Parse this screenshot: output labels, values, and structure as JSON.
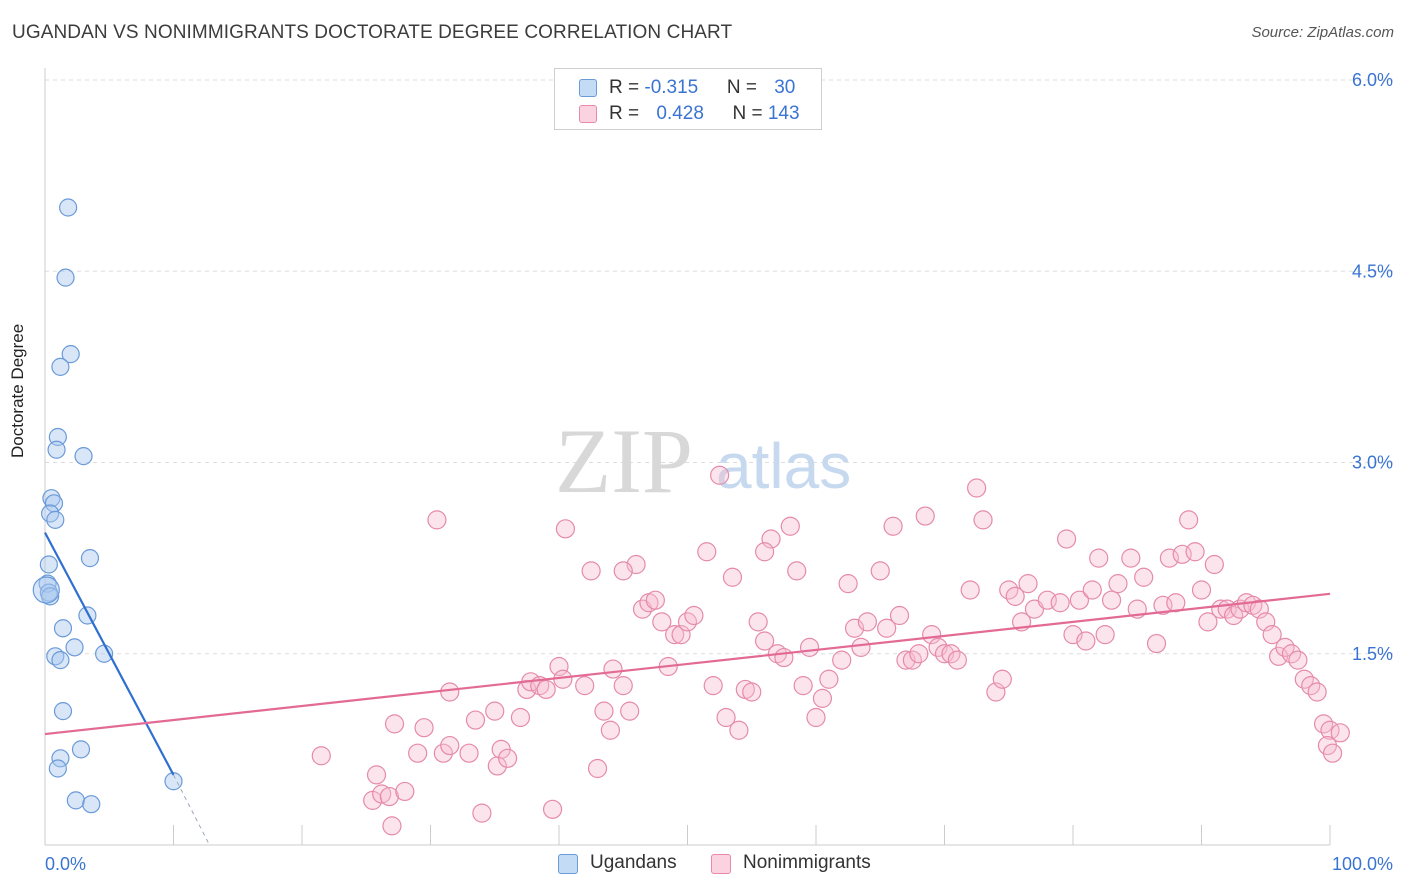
{
  "header": {
    "title": "UGANDAN VS NONIMMIGRANTS DOCTORATE DEGREE CORRELATION CHART",
    "source": "Source: ZipAtlas.com"
  },
  "watermark": {
    "zip": "ZIP",
    "atlas": "atlas"
  },
  "legend": {
    "rows": [
      {
        "r_label": "R = ",
        "r_value": "-0.315",
        "n_label": "N = ",
        "n_value": "30",
        "color": "#a8c8f0",
        "border": "#6a9ad8"
      },
      {
        "r_label": "R = ",
        "r_value": "0.428",
        "n_label": "N = ",
        "n_value": "143",
        "color": "#f8bcd0",
        "border": "#e88aa8"
      }
    ]
  },
  "bottom_legend": {
    "ugandans": "Ugandans",
    "nonimmigrants": "Nonimmigrants"
  },
  "colors": {
    "ugandan_fill": "rgba(168,200,240,0.45)",
    "ugandan_stroke": "#6a9ad8",
    "ugandan_line": "#2f6fd0",
    "nonimm_fill": "rgba(248,188,208,0.40)",
    "nonimm_stroke": "#e58aaa",
    "nonimm_line": "#e26a94",
    "axis_label": "#3a74d2",
    "grid": "#dddddd"
  },
  "chart_data": {
    "type": "scatter",
    "title": "UGANDAN VS NONIMMIGRANTS DOCTORATE DEGREE CORRELATION CHART",
    "xlabel": "",
    "ylabel": "Doctorate Degree",
    "xlim": [
      0,
      100
    ],
    "ylim": [
      0,
      6.0
    ],
    "x_tick_labels": [
      "0.0%",
      "100.0%"
    ],
    "y_ticks": [
      1.5,
      3.0,
      4.5,
      6.0
    ],
    "y_tick_labels": [
      "1.5%",
      "3.0%",
      "4.5%",
      "6.0%"
    ],
    "grid": "horizontal dashed",
    "legend_position": "top-center",
    "series": [
      {
        "name": "Ugandans",
        "points": [
          [
            1.8,
            5.0
          ],
          [
            1.6,
            4.45
          ],
          [
            2.0,
            3.85
          ],
          [
            1.2,
            3.75
          ],
          [
            1.0,
            3.2
          ],
          [
            0.9,
            3.1
          ],
          [
            3.0,
            3.05
          ],
          [
            0.5,
            2.72
          ],
          [
            0.7,
            2.68
          ],
          [
            0.4,
            2.6
          ],
          [
            0.8,
            2.55
          ],
          [
            3.5,
            2.25
          ],
          [
            0.3,
            2.2
          ],
          [
            0.2,
            2.05
          ],
          [
            0.3,
            1.98
          ],
          [
            0.4,
            1.95
          ],
          [
            3.3,
            1.8
          ],
          [
            1.4,
            1.7
          ],
          [
            2.3,
            1.55
          ],
          [
            4.6,
            1.5
          ],
          [
            0.8,
            1.48
          ],
          [
            1.2,
            1.45
          ],
          [
            1.4,
            1.05
          ],
          [
            2.8,
            0.75
          ],
          [
            1.2,
            0.68
          ],
          [
            1.0,
            0.6
          ],
          [
            2.4,
            0.35
          ],
          [
            3.6,
            0.32
          ],
          [
            10.0,
            0.5
          ],
          [
            0.1,
            2.0
          ]
        ],
        "trend": {
          "x1": 0,
          "y1": 2.45,
          "x2": 10,
          "y2": 0.55,
          "dashed_to": [
            12.8,
            0.0
          ]
        }
      },
      {
        "name": "Nonimmigrants",
        "points": [
          [
            21.5,
            0.7
          ],
          [
            25.5,
            0.35
          ],
          [
            25.8,
            0.55
          ],
          [
            26.2,
            0.4
          ],
          [
            26.8,
            0.38
          ],
          [
            27.0,
            0.15
          ],
          [
            27.2,
            0.95
          ],
          [
            28.0,
            0.42
          ],
          [
            29.0,
            0.72
          ],
          [
            29.5,
            0.92
          ],
          [
            31.0,
            0.72
          ],
          [
            31.5,
            1.2
          ],
          [
            31.5,
            0.78
          ],
          [
            33.0,
            0.72
          ],
          [
            34.0,
            0.25
          ],
          [
            35.5,
            0.75
          ],
          [
            33.5,
            0.98
          ],
          [
            35.0,
            1.05
          ],
          [
            35.2,
            0.62
          ],
          [
            36.0,
            0.68
          ],
          [
            37.0,
            1.0
          ],
          [
            37.5,
            1.22
          ],
          [
            37.8,
            1.28
          ],
          [
            38.5,
            1.25
          ],
          [
            39.5,
            0.28
          ],
          [
            39.0,
            1.22
          ],
          [
            40.0,
            1.4
          ],
          [
            40.3,
            1.3
          ],
          [
            42.0,
            1.25
          ],
          [
            42.5,
            2.15
          ],
          [
            43.0,
            0.6
          ],
          [
            43.5,
            1.05
          ],
          [
            44.0,
            0.9
          ],
          [
            44.2,
            1.38
          ],
          [
            45.0,
            1.25
          ],
          [
            45.5,
            1.05
          ],
          [
            46.0,
            2.2
          ],
          [
            46.5,
            1.85
          ],
          [
            47.0,
            1.9
          ],
          [
            47.5,
            1.92
          ],
          [
            48.0,
            1.75
          ],
          [
            48.5,
            1.4
          ],
          [
            49.0,
            1.65
          ],
          [
            49.5,
            1.65
          ],
          [
            50.0,
            1.75
          ],
          [
            50.5,
            1.8
          ],
          [
            51.5,
            2.3
          ],
          [
            52.0,
            1.25
          ],
          [
            52.5,
            2.9
          ],
          [
            53.0,
            1.0
          ],
          [
            53.5,
            2.1
          ],
          [
            54.0,
            0.9
          ],
          [
            54.5,
            1.22
          ],
          [
            55.0,
            1.2
          ],
          [
            55.5,
            1.75
          ],
          [
            56.0,
            1.6
          ],
          [
            56.5,
            2.4
          ],
          [
            57.0,
            1.5
          ],
          [
            57.5,
            1.47
          ],
          [
            58.0,
            2.5
          ],
          [
            58.5,
            2.15
          ],
          [
            59.0,
            1.25
          ],
          [
            59.5,
            1.55
          ],
          [
            60.0,
            1.0
          ],
          [
            60.5,
            1.15
          ],
          [
            61.0,
            1.3
          ],
          [
            62.0,
            1.45
          ],
          [
            62.5,
            2.05
          ],
          [
            63.0,
            1.7
          ],
          [
            63.5,
            1.55
          ],
          [
            64.0,
            1.75
          ],
          [
            65.0,
            2.15
          ],
          [
            65.5,
            1.7
          ],
          [
            66.0,
            2.5
          ],
          [
            66.5,
            1.8
          ],
          [
            67.0,
            1.45
          ],
          [
            67.5,
            1.45
          ],
          [
            68.0,
            1.5
          ],
          [
            69.0,
            1.65
          ],
          [
            69.5,
            1.55
          ],
          [
            70.0,
            1.5
          ],
          [
            70.5,
            1.5
          ],
          [
            71.0,
            1.45
          ],
          [
            72.0,
            2.0
          ],
          [
            72.5,
            2.8
          ],
          [
            73.0,
            2.55
          ],
          [
            74.0,
            1.2
          ],
          [
            74.5,
            1.3
          ],
          [
            75.0,
            2.0
          ],
          [
            75.5,
            1.95
          ],
          [
            76.0,
            1.75
          ],
          [
            76.5,
            2.05
          ],
          [
            77.0,
            1.85
          ],
          [
            78.0,
            1.92
          ],
          [
            79.0,
            1.9
          ],
          [
            79.5,
            2.4
          ],
          [
            80.0,
            1.65
          ],
          [
            80.5,
            1.92
          ],
          [
            81.0,
            1.6
          ],
          [
            82.0,
            2.25
          ],
          [
            82.5,
            1.65
          ],
          [
            83.0,
            1.92
          ],
          [
            83.5,
            2.05
          ],
          [
            84.5,
            2.25
          ],
          [
            85.0,
            1.85
          ],
          [
            85.5,
            2.1
          ],
          [
            86.5,
            1.58
          ],
          [
            87.0,
            1.88
          ],
          [
            87.5,
            2.25
          ],
          [
            88.0,
            1.9
          ],
          [
            88.5,
            2.28
          ],
          [
            89.0,
            2.55
          ],
          [
            89.5,
            2.3
          ],
          [
            90.0,
            2.0
          ],
          [
            90.5,
            1.75
          ],
          [
            91.0,
            2.2
          ],
          [
            91.5,
            1.85
          ],
          [
            92.0,
            1.85
          ],
          [
            92.5,
            1.8
          ],
          [
            93.0,
            1.85
          ],
          [
            93.5,
            1.9
          ],
          [
            94.0,
            1.88
          ],
          [
            94.5,
            1.85
          ],
          [
            95.0,
            1.75
          ],
          [
            95.5,
            1.65
          ],
          [
            96.0,
            1.48
          ],
          [
            96.5,
            1.55
          ],
          [
            97.0,
            1.5
          ],
          [
            97.5,
            1.45
          ],
          [
            98.0,
            1.3
          ],
          [
            98.5,
            1.25
          ],
          [
            99.0,
            1.2
          ],
          [
            99.5,
            0.95
          ],
          [
            100.0,
            0.9
          ],
          [
            99.8,
            0.78
          ],
          [
            100.2,
            0.72
          ],
          [
            100.8,
            0.88
          ],
          [
            30.5,
            2.55
          ],
          [
            40.5,
            2.48
          ],
          [
            45.0,
            2.15
          ],
          [
            56.0,
            2.3
          ],
          [
            68.5,
            2.58
          ],
          [
            81.5,
            2.0
          ]
        ],
        "trend": {
          "x1": 0,
          "y1": 0.87,
          "x2": 100,
          "y2": 1.97
        }
      }
    ]
  }
}
